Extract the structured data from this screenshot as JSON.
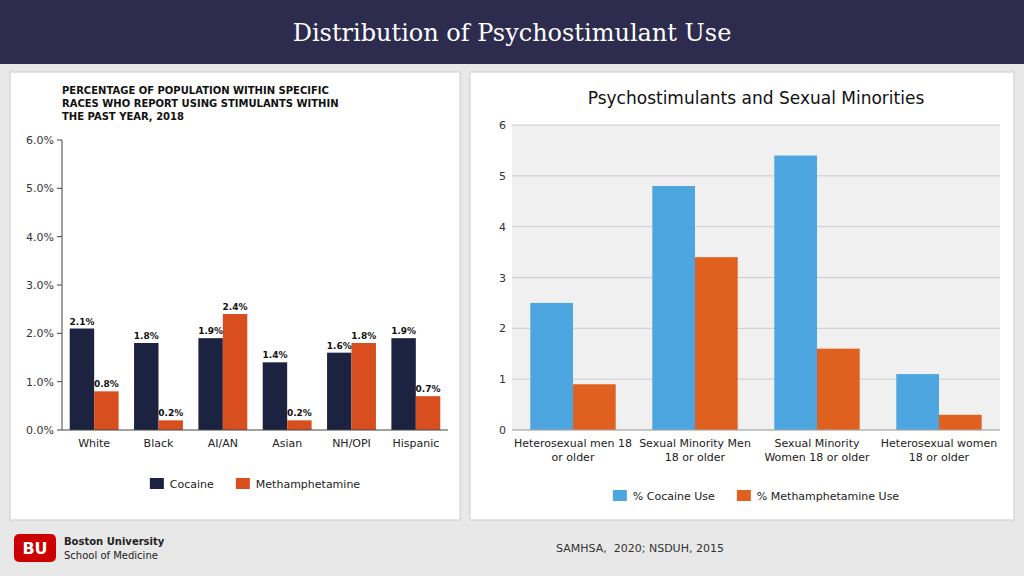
{
  "title": "Distribution of Psychostimulant Use",
  "annotations": [
    "SAMHSA,  2020; NSDUH, 2015",
    "BU",
    "Boston University",
    "School of Medicine"
  ],
  "chart_data": [
    {
      "type": "bar",
      "title": "PERCENTAGE OF POPULATION WITHIN SPECIFIC\nRACES WHO REPORT USING STIMULANTS WITHIN\nTHE PAST YEAR, 2018",
      "categories": [
        "White",
        "Black",
        "AI/AN",
        "Asian",
        "NH/OPI",
        "Hispanic"
      ],
      "series": [
        {
          "name": "Cocaine",
          "color": "#1c2340",
          "values": [
            2.1,
            1.8,
            1.9,
            1.4,
            1.6,
            1.9
          ],
          "value_labels": [
            "2.1%",
            "1.8%",
            "1.9%",
            "1.4%",
            "1.6%",
            "1.9%"
          ]
        },
        {
          "name": "Methamphetamine",
          "color": "#d94e1f",
          "values": [
            0.8,
            0.2,
            2.4,
            0.2,
            1.8,
            0.7
          ],
          "value_labels": [
            "0.8%",
            "0.2%",
            "2.4%",
            "0.2%",
            "1.8%",
            "0.7%"
          ]
        }
      ],
      "ylim": [
        0,
        6
      ],
      "yticks": [
        {
          "value": 0,
          "label": "0.0%"
        },
        {
          "value": 1,
          "label": "1.0%"
        },
        {
          "value": 2,
          "label": "2.0%"
        },
        {
          "value": 3,
          "label": "3.0%"
        },
        {
          "value": 4,
          "label": "4.0%"
        },
        {
          "value": 5,
          "label": "5.0%"
        },
        {
          "value": 6,
          "label": "6.0%"
        }
      ],
      "grid": false,
      "legend": "bottom",
      "data_labels": true
    },
    {
      "type": "bar",
      "title": "Psychostimulants and Sexual Minorities",
      "categories": [
        "Heterosexual men 18\nor older",
        "Sexual Minority Men\n18 or older",
        "Sexual Minority\nWomen 18 or older",
        "Heterosexual women\n18 or older"
      ],
      "series": [
        {
          "name": "% Cocaine Use",
          "color": "#4da6e0",
          "values": [
            2.5,
            4.8,
            5.4,
            1.1
          ]
        },
        {
          "name": "% Methamphetamine Use",
          "color": "#e06020",
          "values": [
            0.9,
            3.4,
            1.6,
            0.3
          ]
        }
      ],
      "ylim": [
        0,
        6
      ],
      "yticks": [
        0,
        1,
        2,
        3,
        4,
        5,
        6
      ],
      "grid": true,
      "legend": "bottom",
      "data_labels": false
    }
  ]
}
